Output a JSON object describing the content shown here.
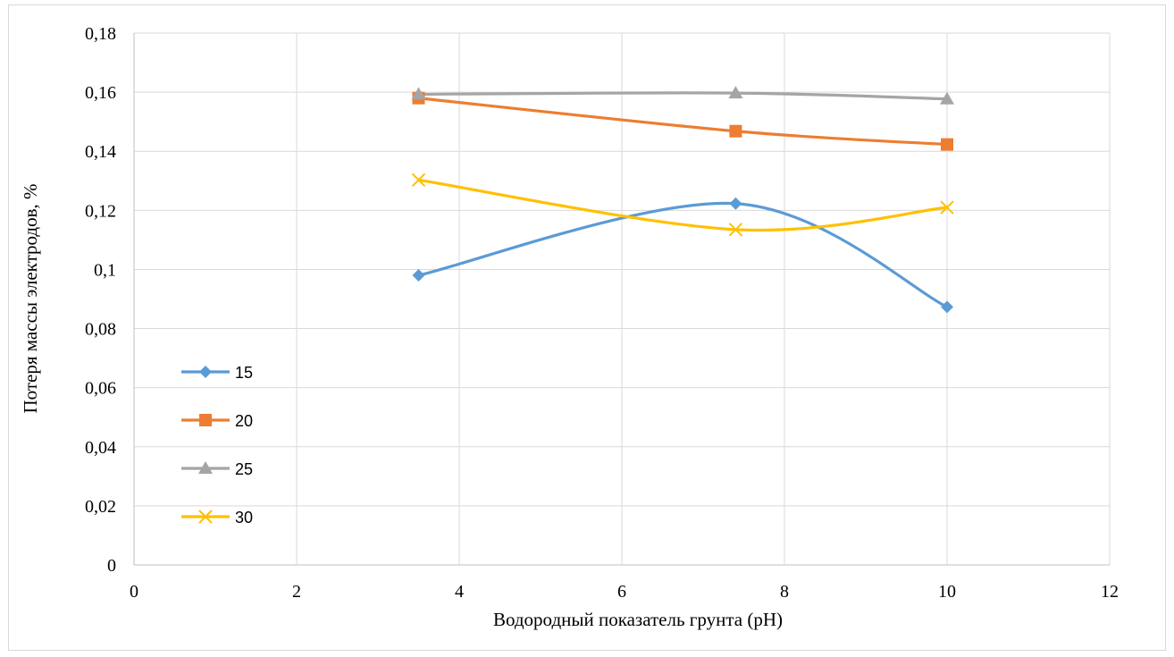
{
  "chart_data": {
    "type": "line",
    "title": "",
    "xlabel": "Водородный показатель грунта (pH)",
    "ylabel": "Потеря массы электродов, %",
    "xlim": [
      0,
      12
    ],
    "ylim": [
      0,
      0.18
    ],
    "x_ticks": [
      "0",
      "2",
      "4",
      "6",
      "8",
      "10",
      "12"
    ],
    "y_ticks": [
      "0",
      "0,02",
      "0,04",
      "0,06",
      "0,08",
      "0,1",
      "0,12",
      "0,14",
      "0,16",
      "0,18"
    ],
    "grid": "vertical and horizontal",
    "legend_position": "left",
    "smooth": true,
    "x": [
      3.5,
      7.4,
      10
    ],
    "series": [
      {
        "name": "15",
        "values": [
          0.098,
          0.1223,
          0.0873
        ],
        "color": "#5b9bd5",
        "marker": "diamond"
      },
      {
        "name": "20",
        "values": [
          0.158,
          0.1468,
          0.1423
        ],
        "color": "#ed7d31",
        "marker": "square"
      },
      {
        "name": "25",
        "values": [
          0.1593,
          0.1597,
          0.1577
        ],
        "color": "#a5a5a5",
        "marker": "triangle"
      },
      {
        "name": "30",
        "values": [
          0.1303,
          0.1135,
          0.121
        ],
        "color": "#ffc000",
        "marker": "x"
      }
    ]
  }
}
